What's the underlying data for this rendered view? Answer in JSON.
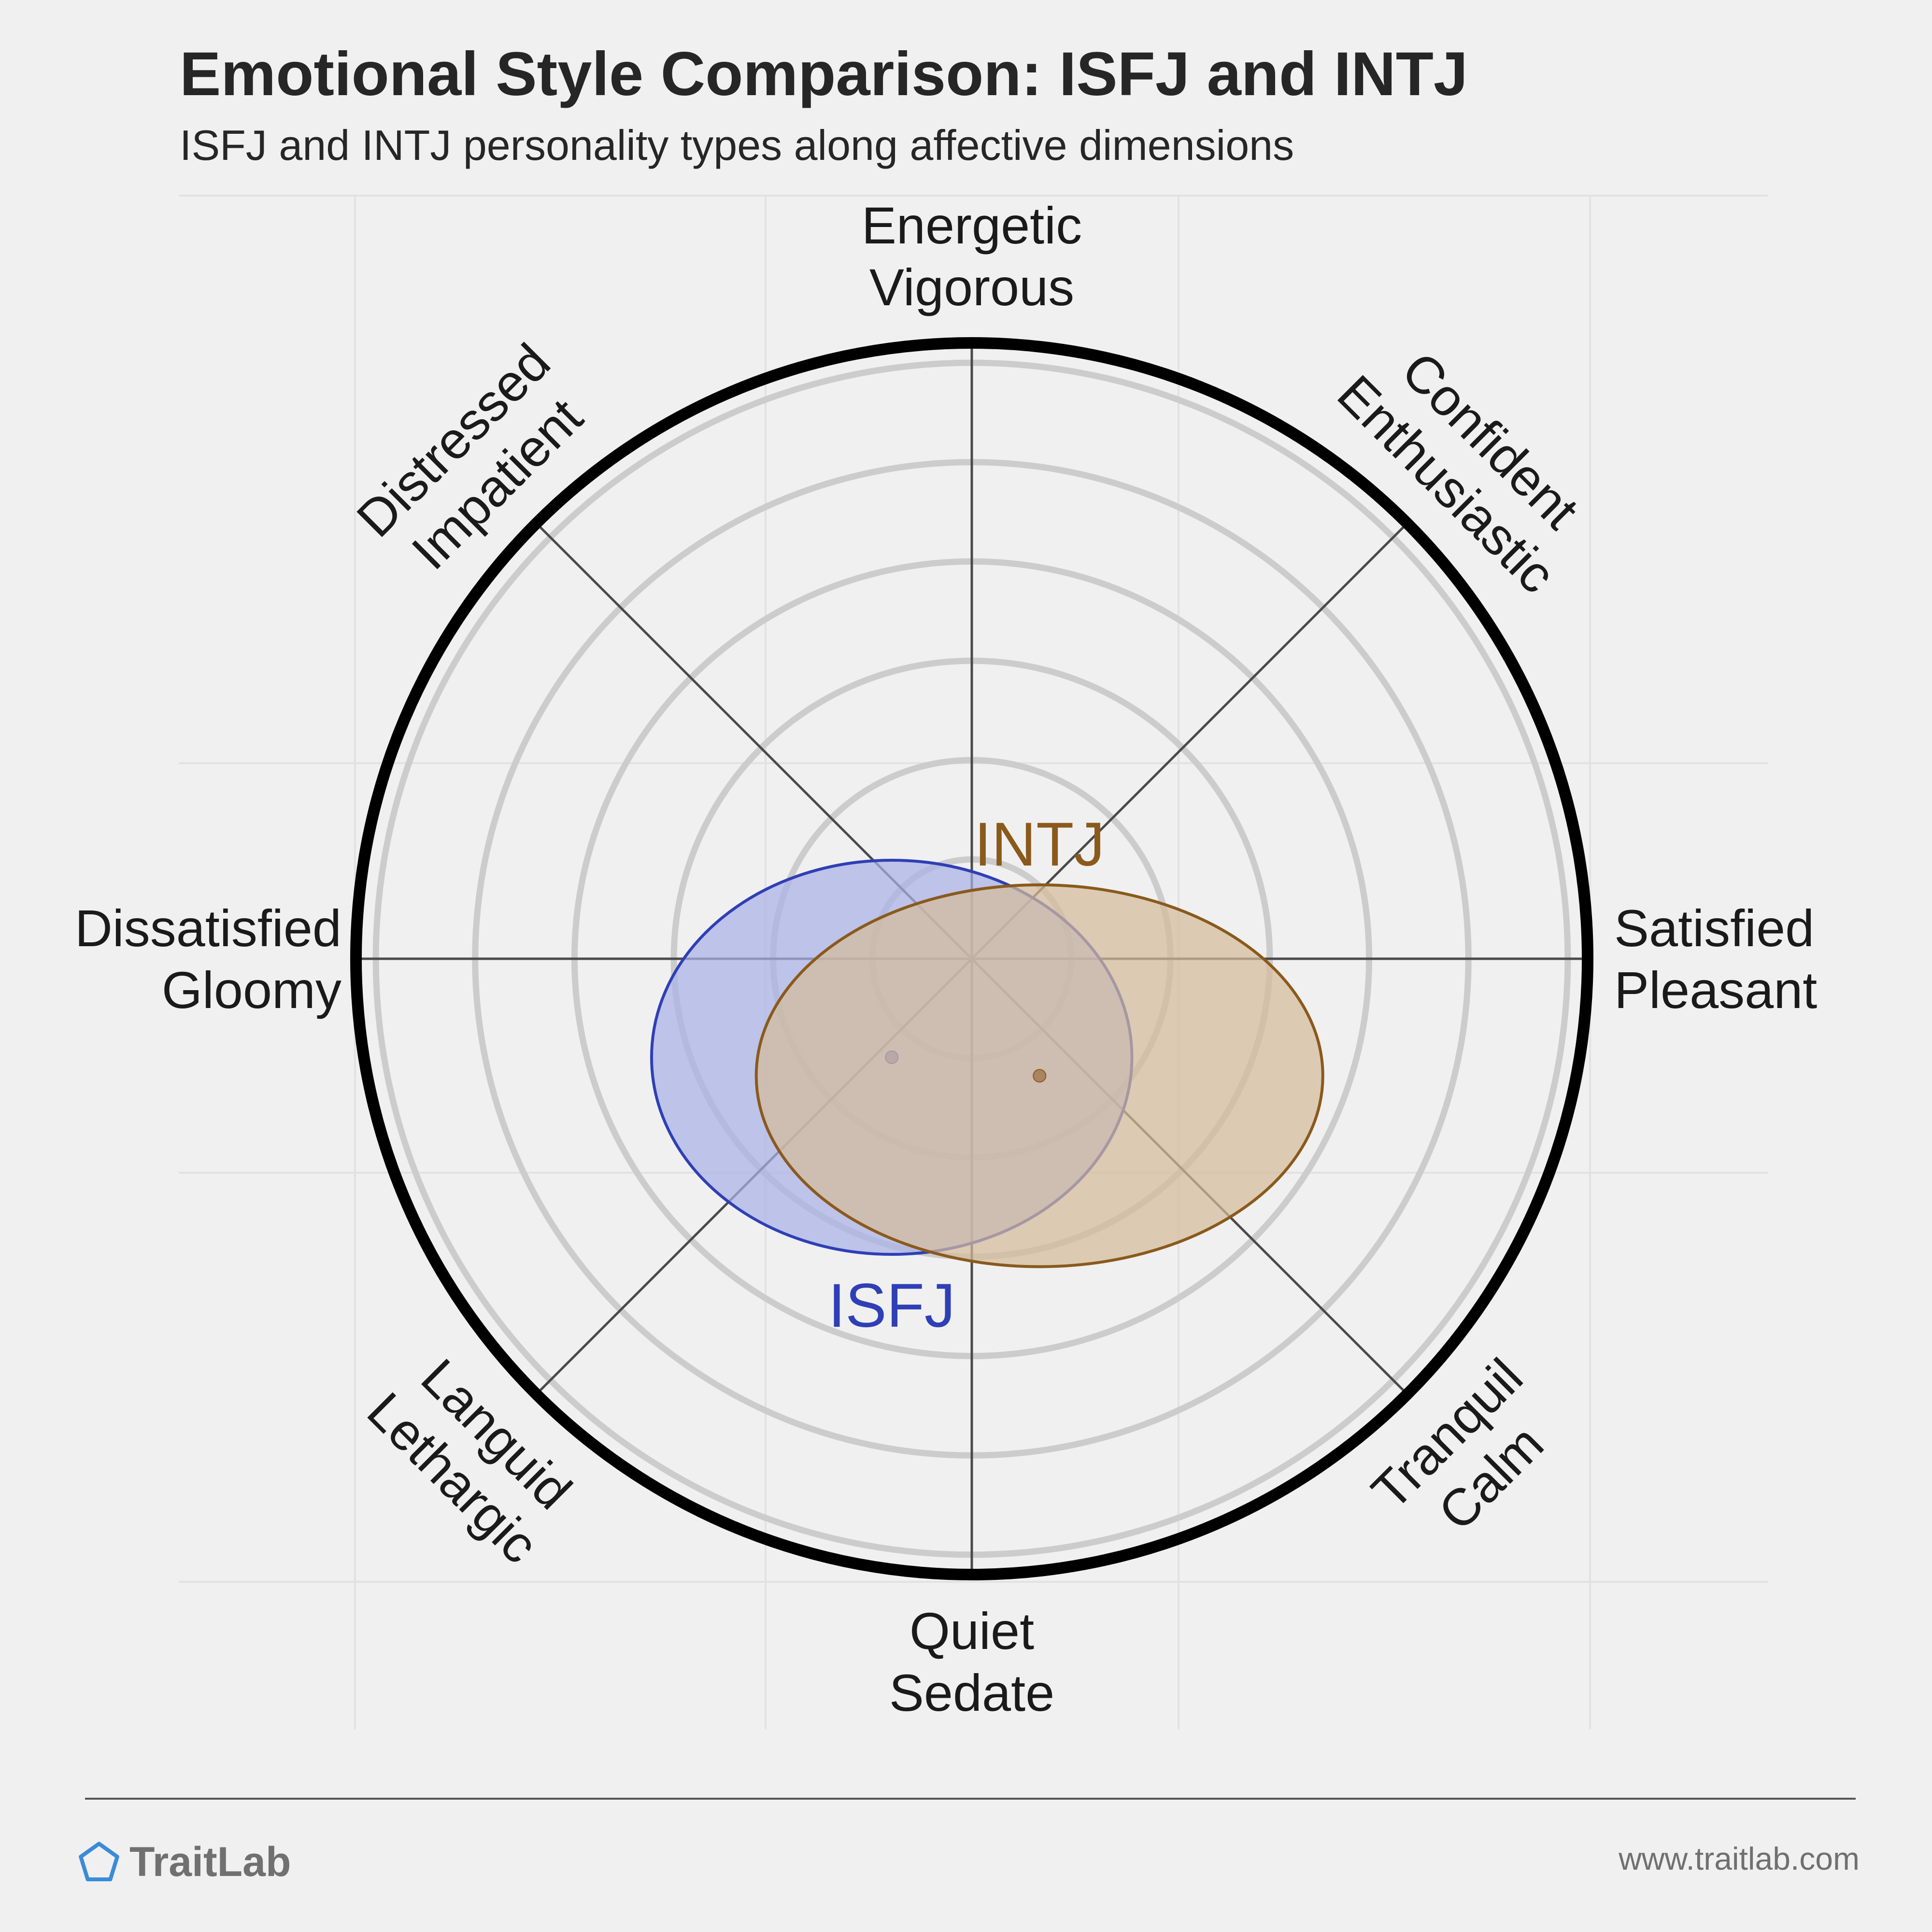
{
  "title": "Emotional Style Comparison: ISFJ and INTJ",
  "subtitle": "ISFJ and INTJ personality types along affective dimensions",
  "brand": {
    "name": "TraitLab",
    "url": "www.traitlab.com",
    "logo_icon": "pentagon-icon",
    "logo_color": "#3a8bd9"
  },
  "chart_data": {
    "type": "radial-affect-plot",
    "axes": [
      {
        "direction": "top",
        "lines": [
          "Energetic",
          "Vigorous"
        ]
      },
      {
        "direction": "top-right",
        "lines": [
          "Confident",
          "Enthusiastic"
        ]
      },
      {
        "direction": "right",
        "lines": [
          "Satisfied",
          "Pleasant"
        ]
      },
      {
        "direction": "bottom-right",
        "lines": [
          "Tranquil",
          "Calm"
        ]
      },
      {
        "direction": "bottom",
        "lines": [
          "Quiet",
          "Sedate"
        ]
      },
      {
        "direction": "bottom-left",
        "lines": [
          "Languid",
          "Lethargic"
        ]
      },
      {
        "direction": "left",
        "lines": [
          "Dissatisfied",
          "Gloomy"
        ]
      },
      {
        "direction": "top-left",
        "lines": [
          "Distressed",
          "Impatient"
        ]
      }
    ],
    "rings": 6,
    "range": [
      -1,
      1
    ],
    "grid": true,
    "series": [
      {
        "name": "ISFJ",
        "center": [
          -0.13,
          -0.16
        ],
        "spread": [
          0.39,
          0.32
        ],
        "color": "#2f3fb5",
        "fill": "#a9b1e6",
        "label_position": "below"
      },
      {
        "name": "INTJ",
        "center": [
          0.11,
          -0.19
        ],
        "spread": [
          0.46,
          0.31
        ],
        "color": "#8a5a1c",
        "fill": "#d4bb9b",
        "label_position": "above"
      }
    ]
  }
}
